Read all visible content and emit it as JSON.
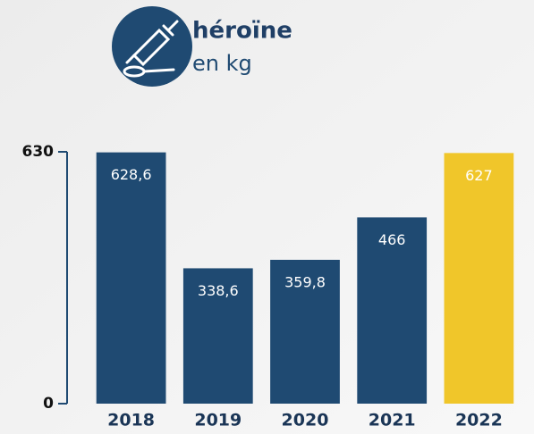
{
  "chart_data": {
    "type": "bar",
    "title": "héroïne",
    "subtitle": "en kg",
    "categories": [
      "2018",
      "2019",
      "2020",
      "2021",
      "2022"
    ],
    "values": [
      628.6,
      338.6,
      359.8,
      466,
      627
    ],
    "value_labels": [
      "628,6",
      "338,6",
      "359,8",
      "466",
      "627"
    ],
    "colors": [
      "#1f4a72",
      "#1f4a72",
      "#1f4a72",
      "#1f4a72",
      "#f0c62a"
    ],
    "ylim": [
      0,
      630
    ],
    "yticks": [
      0,
      630
    ],
    "grid": false
  }
}
